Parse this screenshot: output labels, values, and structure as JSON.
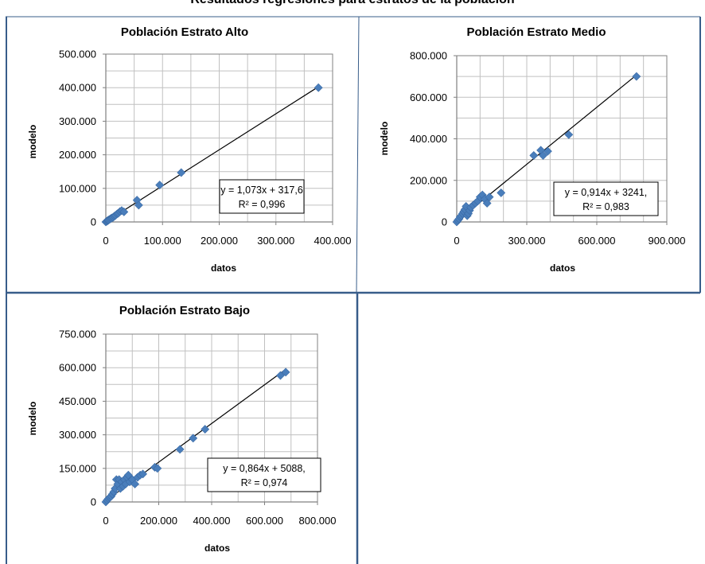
{
  "page_title": "Resultados regresiones para estratos de la población",
  "colors": {
    "marker": "#4a7ebb",
    "frame": "#385d8a",
    "grid": "#c0c0c0",
    "line": "#000000"
  },
  "chart_data": [
    {
      "type": "scatter",
      "title": "Población Estrato Alto",
      "xlabel": "datos",
      "ylabel": "modelo",
      "xlim": [
        0,
        400000
      ],
      "ylim": [
        0,
        500000
      ],
      "x_ticks": [
        "0",
        "100.000",
        "200.000",
        "300.000",
        "400.000"
      ],
      "y_ticks": [
        "0",
        "100.000",
        "200.000",
        "300.000",
        "400.000",
        "500.000"
      ],
      "grid": true,
      "trendline": {
        "slope": 1.073,
        "intercept": 317.6,
        "equation": "y = 1,073x + 317,6",
        "r2": "R² = 0,996"
      },
      "points": [
        [
          0,
          0
        ],
        [
          1500,
          1800
        ],
        [
          3000,
          3500
        ],
        [
          4000,
          5000
        ],
        [
          5000,
          5800
        ],
        [
          7000,
          8000
        ],
        [
          9000,
          10500
        ],
        [
          11000,
          12000
        ],
        [
          13000,
          14000
        ],
        [
          15000,
          17000
        ],
        [
          17000,
          19500
        ],
        [
          20000,
          24000
        ],
        [
          22000,
          26000
        ],
        [
          25000,
          31000
        ],
        [
          28000,
          34000
        ],
        [
          32000,
          30000
        ],
        [
          55000,
          65000
        ],
        [
          58000,
          50000
        ],
        [
          95000,
          110000
        ],
        [
          133000,
          147000
        ],
        [
          375000,
          400000
        ]
      ]
    },
    {
      "type": "scatter",
      "title": "Población Estrato Medio",
      "xlabel": "datos",
      "ylabel": "modelo",
      "xlim": [
        0,
        900000
      ],
      "ylim": [
        0,
        800000
      ],
      "x_ticks": [
        "0",
        "300.000",
        "600.000",
        "900.000"
      ],
      "y_ticks": [
        "0",
        "200.000",
        "400.000",
        "600.000",
        "800.000"
      ],
      "grid": true,
      "trendline": {
        "slope": 0.914,
        "intercept": 3241,
        "equation": "y = 0,914x + 3241,",
        "r2": "R² = 0,983"
      },
      "points": [
        [
          0,
          0
        ],
        [
          5000,
          8000
        ],
        [
          10000,
          15000
        ],
        [
          15000,
          25000
        ],
        [
          20000,
          30000
        ],
        [
          25000,
          40000
        ],
        [
          30000,
          50000
        ],
        [
          35000,
          60000
        ],
        [
          40000,
          75000
        ],
        [
          45000,
          30000
        ],
        [
          50000,
          40000
        ],
        [
          55000,
          55000
        ],
        [
          60000,
          70000
        ],
        [
          70000,
          80000
        ],
        [
          80000,
          90000
        ],
        [
          90000,
          100000
        ],
        [
          100000,
          120000
        ],
        [
          110000,
          130000
        ],
        [
          120000,
          110000
        ],
        [
          130000,
          90000
        ],
        [
          140000,
          120000
        ],
        [
          190000,
          140000
        ],
        [
          330000,
          320000
        ],
        [
          360000,
          345000
        ],
        [
          370000,
          320000
        ],
        [
          390000,
          340000
        ],
        [
          480000,
          420000
        ],
        [
          770000,
          700000
        ]
      ]
    },
    {
      "type": "scatter",
      "title": "Población Estrato Bajo",
      "xlabel": "datos",
      "ylabel": "modelo",
      "xlim": [
        0,
        800000
      ],
      "ylim": [
        0,
        750000
      ],
      "x_ticks": [
        "0",
        "200.000",
        "400.000",
        "600.000",
        "800.000"
      ],
      "y_ticks": [
        "0",
        "150.000",
        "300.000",
        "450.000",
        "600.000",
        "750.000"
      ],
      "grid": true,
      "trendline": {
        "slope": 0.864,
        "intercept": 5088,
        "equation": "y = 0,864x + 5088,",
        "r2": "R² = 0,974"
      },
      "points": [
        [
          0,
          0
        ],
        [
          5000,
          8000
        ],
        [
          10000,
          15000
        ],
        [
          15000,
          20000
        ],
        [
          20000,
          25000
        ],
        [
          25000,
          35000
        ],
        [
          30000,
          45000
        ],
        [
          35000,
          60000
        ],
        [
          40000,
          100000
        ],
        [
          45000,
          80000
        ],
        [
          50000,
          100000
        ],
        [
          55000,
          60000
        ],
        [
          60000,
          90000
        ],
        [
          65000,
          70000
        ],
        [
          70000,
          100000
        ],
        [
          75000,
          80000
        ],
        [
          80000,
          110000
        ],
        [
          85000,
          120000
        ],
        [
          90000,
          90000
        ],
        [
          100000,
          100000
        ],
        [
          110000,
          80000
        ],
        [
          120000,
          110000
        ],
        [
          130000,
          120000
        ],
        [
          140000,
          125000
        ],
        [
          185000,
          155000
        ],
        [
          195000,
          150000
        ],
        [
          280000,
          235000
        ],
        [
          330000,
          285000
        ],
        [
          375000,
          325000
        ],
        [
          660000,
          565000
        ],
        [
          680000,
          580000
        ]
      ]
    }
  ]
}
